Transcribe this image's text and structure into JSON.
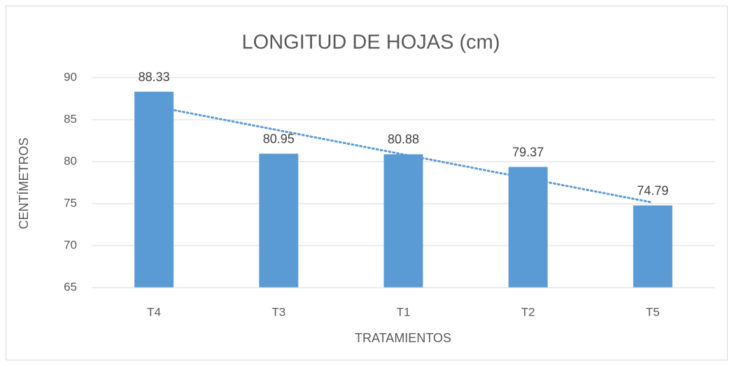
{
  "chart_data": {
    "type": "bar",
    "title": "LONGITUD DE HOJAS (cm)",
    "x_label": "TRATAMIENTOS",
    "y_label": "CENTÍMETROS",
    "categories": [
      "T4",
      "T3",
      "T1",
      "T2",
      "T5"
    ],
    "values": [
      88.33,
      80.95,
      80.88,
      79.37,
      74.79
    ],
    "color": "#5b9bd5",
    "ylim": [
      65,
      90
    ],
    "yticks": [
      65,
      70,
      75,
      80,
      85,
      90
    ],
    "grid": true,
    "trendline": {
      "type": "linear",
      "color": "#5b9bd5"
    }
  }
}
